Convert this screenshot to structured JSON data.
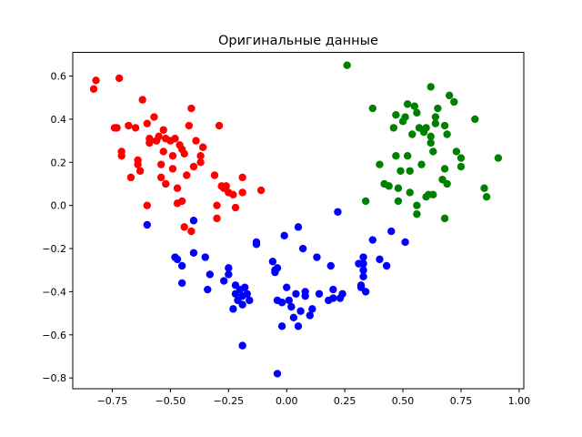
{
  "chart_data": {
    "type": "scatter",
    "title": "Оригинальные данные",
    "xlabel": "",
    "ylabel": "",
    "xlim": [
      -0.92,
      1.02
    ],
    "ylim": [
      -0.85,
      0.71
    ],
    "grid": false,
    "x_ticks": [
      -0.75,
      -0.5,
      -0.25,
      0.0,
      0.25,
      0.5,
      0.75,
      1.0
    ],
    "x_tick_labels": [
      "−0.75",
      "−0.50",
      "−0.25",
      "0.00",
      "0.25",
      "0.50",
      "0.75",
      "1.00"
    ],
    "y_ticks": [
      -0.8,
      -0.6,
      -0.4,
      -0.2,
      0.0,
      0.2,
      0.4,
      0.6
    ],
    "y_tick_labels": [
      "−0.8",
      "−0.6",
      "−0.4",
      "−0.2",
      "0.0",
      "0.2",
      "0.4",
      "0.6"
    ],
    "series": [
      {
        "color": "#ff0000",
        "points": [
          [
            -0.82,
            0.58
          ],
          [
            -0.83,
            0.54
          ],
          [
            -0.72,
            0.59
          ],
          [
            -0.73,
            0.36
          ],
          [
            -0.74,
            0.36
          ],
          [
            -0.71,
            0.25
          ],
          [
            -0.71,
            0.23
          ],
          [
            -0.68,
            0.37
          ],
          [
            -0.67,
            0.13
          ],
          [
            -0.65,
            0.36
          ],
          [
            -0.64,
            0.21
          ],
          [
            -0.64,
            0.19
          ],
          [
            -0.63,
            0.16
          ],
          [
            -0.62,
            0.49
          ],
          [
            -0.6,
            0.38
          ],
          [
            -0.59,
            0.31
          ],
          [
            -0.59,
            0.29
          ],
          [
            -0.57,
            0.41
          ],
          [
            -0.56,
            0.3
          ],
          [
            -0.55,
            0.32
          ],
          [
            -0.54,
            0.13
          ],
          [
            -0.54,
            0.19
          ],
          [
            -0.53,
            0.25
          ],
          [
            -0.53,
            0.35
          ],
          [
            -0.52,
            0.31
          ],
          [
            -0.52,
            0.1
          ],
          [
            -0.5,
            0.3
          ],
          [
            -0.49,
            0.23
          ],
          [
            -0.49,
            0.17
          ],
          [
            -0.48,
            0.31
          ],
          [
            -0.47,
            0.01
          ],
          [
            -0.47,
            0.08
          ],
          [
            -0.46,
            0.28
          ],
          [
            -0.45,
            0.02
          ],
          [
            -0.45,
            0.26
          ],
          [
            -0.44,
            0.24
          ],
          [
            -0.43,
            0.14
          ],
          [
            -0.42,
            0.37
          ],
          [
            -0.41,
            0.45
          ],
          [
            -0.44,
            -0.1
          ],
          [
            -0.41,
            -0.12
          ],
          [
            -0.4,
            0.18
          ],
          [
            -0.39,
            0.3
          ],
          [
            -0.37,
            0.23
          ],
          [
            -0.37,
            0.2
          ],
          [
            -0.36,
            0.27
          ],
          [
            -0.29,
            0.37
          ],
          [
            -0.31,
            0.14
          ],
          [
            -0.3,
            -0.06
          ],
          [
            -0.3,
            0.0
          ],
          [
            -0.28,
            0.09
          ],
          [
            -0.27,
            0.08
          ],
          [
            -0.26,
            0.09
          ],
          [
            -0.25,
            0.06
          ],
          [
            -0.23,
            0.05
          ],
          [
            -0.22,
            -0.01
          ],
          [
            -0.19,
            0.13
          ],
          [
            -0.19,
            0.06
          ],
          [
            -0.11,
            0.07
          ],
          [
            -0.6,
            0.0
          ]
        ]
      },
      {
        "color": "#0000ff",
        "points": [
          [
            -0.6,
            -0.09
          ],
          [
            -0.48,
            -0.24
          ],
          [
            -0.47,
            -0.25
          ],
          [
            -0.45,
            -0.28
          ],
          [
            -0.45,
            -0.36
          ],
          [
            -0.4,
            -0.07
          ],
          [
            -0.4,
            -0.22
          ],
          [
            -0.35,
            -0.24
          ],
          [
            -0.34,
            -0.39
          ],
          [
            -0.33,
            -0.32
          ],
          [
            -0.27,
            -0.35
          ],
          [
            -0.25,
            -0.29
          ],
          [
            -0.25,
            -0.32
          ],
          [
            -0.23,
            -0.48
          ],
          [
            -0.22,
            -0.37
          ],
          [
            -0.22,
            -0.41
          ],
          [
            -0.21,
            -0.44
          ],
          [
            -0.2,
            -0.39
          ],
          [
            -0.19,
            -0.46
          ],
          [
            -0.19,
            -0.42
          ],
          [
            -0.18,
            -0.38
          ],
          [
            -0.17,
            -0.41
          ],
          [
            -0.16,
            -0.44
          ],
          [
            -0.13,
            -0.17
          ],
          [
            -0.13,
            -0.18
          ],
          [
            -0.19,
            -0.65
          ],
          [
            -0.06,
            -0.26
          ],
          [
            -0.05,
            -0.3
          ],
          [
            -0.05,
            -0.31
          ],
          [
            -0.04,
            -0.29
          ],
          [
            -0.04,
            -0.44
          ],
          [
            -0.04,
            -0.78
          ],
          [
            -0.02,
            -0.45
          ],
          [
            -0.02,
            -0.56
          ],
          [
            -0.01,
            -0.14
          ],
          [
            0.0,
            -0.38
          ],
          [
            0.01,
            -0.44
          ],
          [
            0.02,
            -0.47
          ],
          [
            0.03,
            -0.52
          ],
          [
            0.04,
            -0.41
          ],
          [
            0.05,
            -0.1
          ],
          [
            0.05,
            -0.56
          ],
          [
            0.06,
            -0.49
          ],
          [
            0.07,
            -0.2
          ],
          [
            0.08,
            -0.42
          ],
          [
            0.08,
            -0.4
          ],
          [
            0.1,
            -0.51
          ],
          [
            0.11,
            -0.48
          ],
          [
            0.13,
            -0.24
          ],
          [
            0.14,
            -0.41
          ],
          [
            0.18,
            -0.44
          ],
          [
            0.19,
            -0.28
          ],
          [
            0.2,
            -0.39
          ],
          [
            0.2,
            -0.43
          ],
          [
            0.22,
            -0.03
          ],
          [
            0.23,
            -0.43
          ],
          [
            0.24,
            -0.41
          ],
          [
            0.31,
            -0.27
          ],
          [
            0.32,
            -0.37
          ],
          [
            0.32,
            -0.38
          ],
          [
            0.33,
            -0.33
          ],
          [
            0.33,
            -0.27
          ],
          [
            0.33,
            -0.24
          ],
          [
            0.33,
            -0.3
          ],
          [
            0.34,
            -0.4
          ],
          [
            0.37,
            -0.16
          ],
          [
            0.4,
            -0.25
          ],
          [
            0.43,
            -0.28
          ],
          [
            0.45,
            -0.12
          ],
          [
            0.51,
            -0.17
          ]
        ]
      },
      {
        "color": "#008000",
        "points": [
          [
            0.26,
            0.65
          ],
          [
            0.34,
            0.02
          ],
          [
            0.37,
            0.45
          ],
          [
            0.4,
            0.19
          ],
          [
            0.42,
            0.1
          ],
          [
            0.44,
            0.09
          ],
          [
            0.46,
            0.36
          ],
          [
            0.47,
            0.42
          ],
          [
            0.47,
            0.23
          ],
          [
            0.48,
            0.08
          ],
          [
            0.48,
            0.02
          ],
          [
            0.49,
            0.16
          ],
          [
            0.5,
            0.39
          ],
          [
            0.51,
            0.41
          ],
          [
            0.52,
            0.47
          ],
          [
            0.52,
            0.23
          ],
          [
            0.53,
            0.16
          ],
          [
            0.53,
            0.06
          ],
          [
            0.54,
            0.33
          ],
          [
            0.55,
            0.46
          ],
          [
            0.56,
            0.43
          ],
          [
            0.56,
            -0.04
          ],
          [
            0.56,
            0.0
          ],
          [
            0.57,
            0.36
          ],
          [
            0.58,
            0.19
          ],
          [
            0.59,
            0.34
          ],
          [
            0.6,
            0.36
          ],
          [
            0.6,
            0.04
          ],
          [
            0.61,
            0.05
          ],
          [
            0.62,
            0.32
          ],
          [
            0.62,
            0.29
          ],
          [
            0.62,
            0.55
          ],
          [
            0.63,
            0.25
          ],
          [
            0.63,
            0.05
          ],
          [
            0.64,
            0.41
          ],
          [
            0.64,
            0.38
          ],
          [
            0.65,
            0.45
          ],
          [
            0.67,
            0.12
          ],
          [
            0.68,
            -0.06
          ],
          [
            0.68,
            0.17
          ],
          [
            0.68,
            0.37
          ],
          [
            0.69,
            0.33
          ],
          [
            0.69,
            0.1
          ],
          [
            0.7,
            0.51
          ],
          [
            0.72,
            0.48
          ],
          [
            0.73,
            0.25
          ],
          [
            0.75,
            0.22
          ],
          [
            0.75,
            0.18
          ],
          [
            0.81,
            0.4
          ],
          [
            0.85,
            0.08
          ],
          [
            0.86,
            0.04
          ],
          [
            0.91,
            0.22
          ]
        ]
      }
    ]
  }
}
